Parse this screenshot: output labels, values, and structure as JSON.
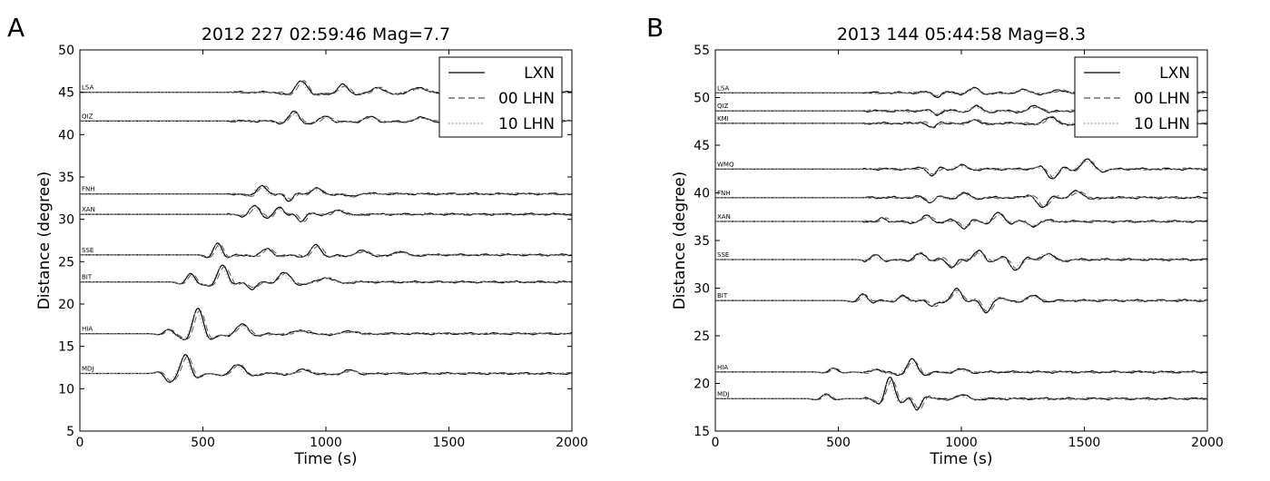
{
  "chart_data": [
    {
      "panel": "A",
      "type": "line",
      "title": "2012 227 02:59:46 Mag=7.7",
      "xlabel": "Time (s)",
      "ylabel": "Distance (degree)",
      "xlim": [
        0,
        2000
      ],
      "ylim": [
        5,
        50
      ],
      "xticks": [
        0,
        500,
        1000,
        1500,
        2000
      ],
      "yticks": [
        5,
        10,
        15,
        20,
        25,
        30,
        35,
        40,
        45,
        50
      ],
      "grid": false,
      "legend": {
        "position": "top-right",
        "entries": [
          "LXN",
          "00 LHN",
          "10 LHN"
        ]
      },
      "series": [
        {
          "name": "LXN",
          "style": "solid",
          "color": "#000000"
        },
        {
          "name": "00 LHN",
          "style": "dashed",
          "color": "#555555"
        },
        {
          "name": "10 LHN",
          "style": "dotted",
          "color": "#999999"
        }
      ],
      "stations": [
        {
          "label": "LSA",
          "distance": 45.0,
          "wavelets": [
            [
              900,
              1.4,
              55
            ],
            [
              1070,
              0.9,
              50
            ],
            [
              1210,
              0.6,
              55
            ],
            [
              1380,
              0.5,
              80
            ]
          ]
        },
        {
          "label": "QIZ",
          "distance": 41.6,
          "wavelets": [
            [
              870,
              1.1,
              50
            ],
            [
              1000,
              0.6,
              50
            ],
            [
              1180,
              0.5,
              60
            ],
            [
              1390,
              0.4,
              70
            ]
          ]
        },
        {
          "label": "FNH",
          "distance": 33.0,
          "wavelets": [
            [
              740,
              1.0,
              50
            ],
            [
              850,
              -0.8,
              40
            ],
            [
              960,
              0.7,
              55
            ],
            [
              1100,
              -0.3,
              60
            ]
          ]
        },
        {
          "label": "XAN",
          "distance": 30.6,
          "wavelets": [
            [
              710,
              1.0,
              45
            ],
            [
              810,
              0.8,
              40
            ],
            [
              900,
              -0.9,
              40
            ],
            [
              1050,
              0.5,
              60
            ]
          ]
        },
        {
          "label": "SSE",
          "distance": 25.8,
          "wavelets": [
            [
              560,
              1.4,
              40
            ],
            [
              760,
              0.8,
              50
            ],
            [
              960,
              1.2,
              50
            ],
            [
              1150,
              0.5,
              60
            ],
            [
              1300,
              0.4,
              60
            ]
          ]
        },
        {
          "label": "BIT",
          "distance": 22.6,
          "wavelets": [
            [
              450,
              1.0,
              40
            ],
            [
              580,
              2.0,
              50
            ],
            [
              700,
              -0.8,
              50
            ],
            [
              830,
              1.1,
              60
            ],
            [
              1000,
              0.5,
              70
            ]
          ]
        },
        {
          "label": "HIA",
          "distance": 16.5,
          "wavelets": [
            [
              360,
              0.5,
              40
            ],
            [
              480,
              3.0,
              50
            ],
            [
              660,
              1.1,
              60
            ],
            [
              900,
              0.4,
              70
            ],
            [
              1100,
              0.3,
              70
            ]
          ]
        },
        {
          "label": "MDJ",
          "distance": 11.8,
          "wavelets": [
            [
              360,
              -0.8,
              40
            ],
            [
              430,
              2.2,
              45
            ],
            [
              640,
              1.1,
              60
            ],
            [
              910,
              0.5,
              60
            ],
            [
              1100,
              0.4,
              60
            ]
          ]
        }
      ]
    },
    {
      "panel": "B",
      "type": "line",
      "title": "2013 144 05:44:58 Mag=8.3",
      "xlabel": "Time (s)",
      "ylabel": "Distance (degree)",
      "xlim": [
        0,
        2000
      ],
      "ylim": [
        15,
        55
      ],
      "xticks": [
        0,
        500,
        1000,
        1500,
        2000
      ],
      "yticks": [
        15,
        20,
        25,
        30,
        35,
        40,
        45,
        50,
        55
      ],
      "grid": false,
      "legend": {
        "position": "top-right",
        "entries": [
          "LXN",
          "00 LHN",
          "10 LHN"
        ]
      },
      "series": [
        {
          "name": "LXN",
          "style": "solid",
          "color": "#000000"
        },
        {
          "name": "00 LHN",
          "style": "dashed",
          "color": "#555555"
        },
        {
          "name": "10 LHN",
          "style": "dotted",
          "color": "#999999"
        }
      ],
      "stations": [
        {
          "label": "LSA",
          "distance": 50.5,
          "wavelets": [
            [
              900,
              -0.4,
              40
            ],
            [
              1050,
              0.5,
              50
            ],
            [
              1250,
              0.3,
              60
            ],
            [
              1400,
              0.3,
              60
            ]
          ]
        },
        {
          "label": "QIZ",
          "distance": 48.6,
          "wavelets": [
            [
              900,
              -0.4,
              40
            ],
            [
              1060,
              0.5,
              50
            ],
            [
              1300,
              0.5,
              60
            ]
          ]
        },
        {
          "label": "KMI",
          "distance": 47.3,
          "wavelets": [
            [
              880,
              -0.5,
              40
            ],
            [
              1050,
              0.4,
              50
            ],
            [
              1360,
              0.7,
              60
            ]
          ]
        },
        {
          "label": "WMQ",
          "distance": 42.5,
          "wavelets": [
            [
              880,
              -0.7,
              40
            ],
            [
              1000,
              0.4,
              50
            ],
            [
              1370,
              -1.0,
              50
            ],
            [
              1510,
              1.0,
              60
            ]
          ]
        },
        {
          "label": "FNH",
          "distance": 39.5,
          "wavelets": [
            [
              870,
              -0.5,
              40
            ],
            [
              1010,
              0.5,
              50
            ],
            [
              1330,
              -1.1,
              50
            ],
            [
              1470,
              0.7,
              60
            ]
          ]
        },
        {
          "label": "XAN",
          "distance": 37.0,
          "wavelets": [
            [
              680,
              0.4,
              40
            ],
            [
              860,
              0.6,
              50
            ],
            [
              1010,
              -0.7,
              45
            ],
            [
              1150,
              0.9,
              50
            ],
            [
              1290,
              -0.5,
              55
            ]
          ]
        },
        {
          "label": "SSE",
          "distance": 33.0,
          "wavelets": [
            [
              650,
              0.5,
              40
            ],
            [
              830,
              0.7,
              50
            ],
            [
              960,
              -0.9,
              45
            ],
            [
              1070,
              0.9,
              50
            ],
            [
              1220,
              -1.1,
              50
            ],
            [
              1350,
              0.6,
              60
            ]
          ]
        },
        {
          "label": "BIT",
          "distance": 28.7,
          "wavelets": [
            [
              600,
              0.7,
              40
            ],
            [
              760,
              0.5,
              45
            ],
            [
              880,
              -0.6,
              45
            ],
            [
              980,
              1.2,
              50
            ],
            [
              1100,
              -1.3,
              50
            ],
            [
              1290,
              0.5,
              60
            ]
          ]
        },
        {
          "label": "HIA",
          "distance": 21.2,
          "wavelets": [
            [
              480,
              0.4,
              40
            ],
            [
              650,
              0.3,
              45
            ],
            [
              800,
              1.3,
              50
            ],
            [
              1000,
              0.3,
              60
            ]
          ]
        },
        {
          "label": "MDJ",
          "distance": 18.4,
          "wavelets": [
            [
              450,
              0.5,
              40
            ],
            [
              710,
              2.2,
              45
            ],
            [
              820,
              -1.2,
              40
            ],
            [
              1000,
              0.4,
              60
            ]
          ]
        }
      ]
    }
  ]
}
